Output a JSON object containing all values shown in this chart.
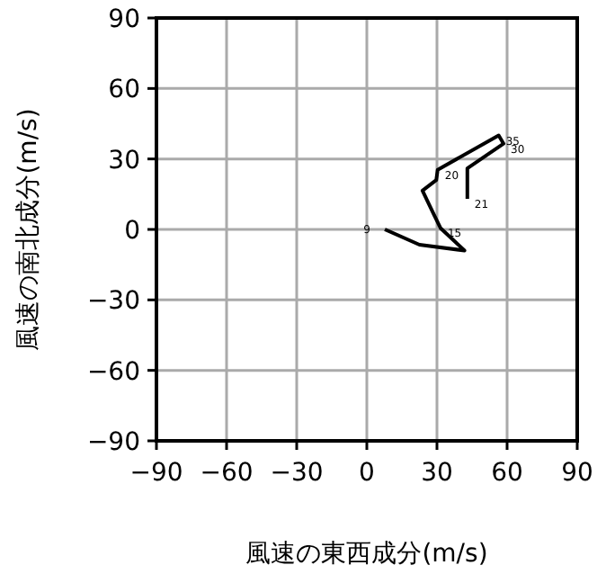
{
  "chart_data": {
    "type": "line",
    "xlabel": "風速の東西成分(m/s)",
    "ylabel": "風速の南北成分(m/s)",
    "xlim": [
      -90,
      90
    ],
    "ylim": [
      -90,
      90
    ],
    "xticks": [
      -90,
      -60,
      -30,
      0,
      30,
      60,
      90
    ],
    "yticks": [
      -90,
      -60,
      -30,
      0,
      30,
      60,
      90
    ],
    "grid": true,
    "series": [
      {
        "color": "#000000",
        "x": [
          7.7,
          22.5,
          41.8,
          31.5,
          29,
          23.8,
          29.7,
          30.3,
          56.4,
          58.5,
          43,
          43
        ],
        "values": [
          0,
          -6.5,
          -9,
          0.6,
          5.7,
          16.5,
          21,
          25.4,
          40,
          36.5,
          26,
          13
        ]
      }
    ],
    "annotations": [
      {
        "text": "9",
        "x": 7.7,
        "y": 0
      },
      {
        "text": "15",
        "x": 31.5,
        "y": 0.6
      },
      {
        "text": "20",
        "x": 30.3,
        "y": 25.4
      },
      {
        "text": "35",
        "x": 56.4,
        "y": 40
      },
      {
        "text": "30",
        "x": 58.5,
        "y": 36.5
      },
      {
        "text": "21",
        "x": 43,
        "y": 13
      }
    ]
  }
}
